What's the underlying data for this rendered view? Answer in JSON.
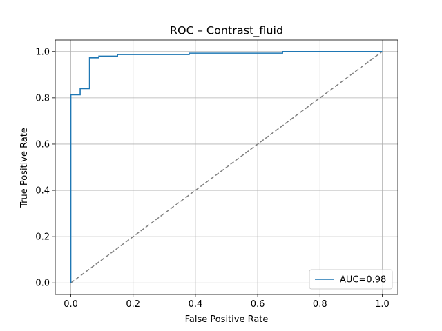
{
  "chart_data": {
    "type": "line",
    "title": "ROC – Contrast_fluid",
    "xlabel": "False Positive Rate",
    "ylabel": "True Positive Rate",
    "xlim": [
      -0.05,
      1.05
    ],
    "ylim": [
      -0.05,
      1.05
    ],
    "xticks": [
      0.0,
      0.2,
      0.4,
      0.6,
      0.8,
      1.0
    ],
    "yticks": [
      0.0,
      0.2,
      0.4,
      0.6,
      0.8,
      1.0
    ],
    "xtick_labels": [
      "0.0",
      "0.2",
      "0.4",
      "0.6",
      "0.8",
      "1.0"
    ],
    "ytick_labels": [
      "0.0",
      "0.2",
      "0.4",
      "0.6",
      "0.8",
      "1.0"
    ],
    "grid": true,
    "legend_position": "lower-right",
    "series": [
      {
        "name": "AUC=0.98",
        "color": "#1f77b4",
        "style": "solid",
        "step": true,
        "x": [
          0.0,
          0.0,
          0.03,
          0.03,
          0.06,
          0.06,
          0.09,
          0.09,
          0.15,
          0.15,
          0.38,
          0.38,
          0.68,
          0.68,
          1.0
        ],
        "y": [
          0.0,
          0.813,
          0.813,
          0.84,
          0.84,
          0.973,
          0.973,
          0.98,
          0.98,
          0.987,
          0.987,
          0.993,
          0.993,
          1.0,
          1.0
        ]
      }
    ],
    "reference_line": {
      "color": "#808080",
      "style": "dashed",
      "x": [
        0.0,
        1.0
      ],
      "y": [
        0.0,
        1.0
      ]
    }
  }
}
